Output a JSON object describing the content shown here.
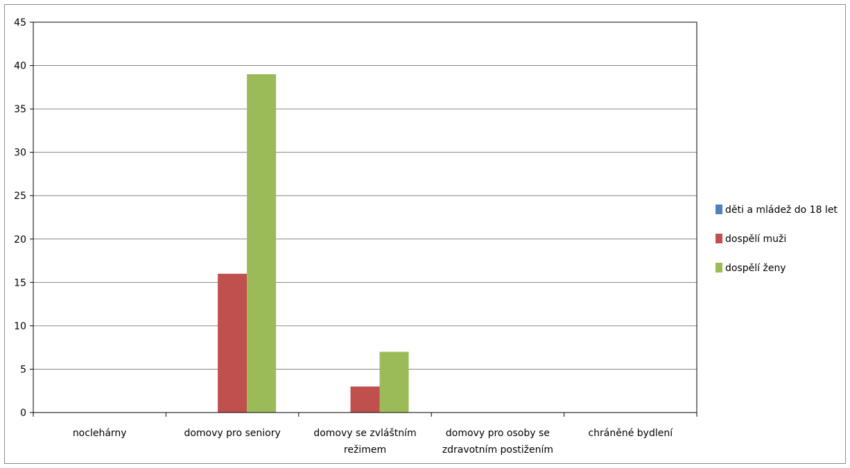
{
  "chart_data": {
    "type": "bar",
    "title": "",
    "xlabel": "",
    "ylabel": "",
    "ylim": [
      0,
      45
    ],
    "yticks": [
      0,
      5,
      10,
      15,
      20,
      25,
      30,
      35,
      40,
      45
    ],
    "grid": true,
    "legend_position": "right",
    "categories": [
      [
        "noclehárny"
      ],
      [
        "domovy pro seniory"
      ],
      [
        "domovy se zvláštním",
        "režimem"
      ],
      [
        "domovy pro osoby se",
        "zdravotním postižením"
      ],
      [
        "chráněné bydlení"
      ]
    ],
    "series": [
      {
        "name": "děti a mládež do 18 let",
        "color": "#4f81bd",
        "values": [
          0,
          0,
          0,
          0,
          0
        ]
      },
      {
        "name": "dospělí muži",
        "color": "#c0504d",
        "values": [
          0,
          16,
          3,
          0,
          0
        ]
      },
      {
        "name": "dospělí ženy",
        "color": "#9bbb59",
        "values": [
          0,
          39,
          7,
          0,
          0
        ]
      }
    ]
  }
}
